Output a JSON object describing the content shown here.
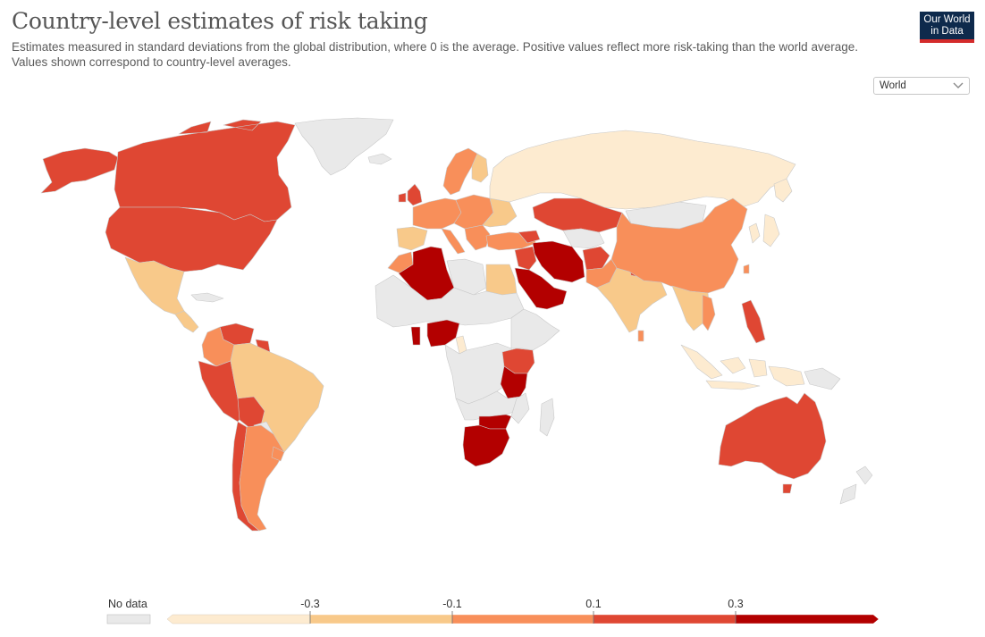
{
  "header": {
    "title": "Country-level estimates of risk taking",
    "subtitle": "Estimates measured in standard deviations from the global distribution, where 0 is the average. Positive values reflect more risk-taking than the world average. Values shown correspond to country-level averages.",
    "logo_line1": "Our World",
    "logo_line2": "in Data"
  },
  "controls": {
    "region_select_value": "World",
    "chevron_icon": "chevron-down-icon"
  },
  "legend": {
    "no_data_label": "No data",
    "tick_labels": [
      "-0.3",
      "-0.1",
      "0.1",
      "0.3"
    ],
    "bins": [
      {
        "from": null,
        "to": -0.3,
        "color": "#fdebd0"
      },
      {
        "from": -0.3,
        "to": -0.1,
        "color": "#f8c98a"
      },
      {
        "from": -0.1,
        "to": 0.1,
        "color": "#f88f5a"
      },
      {
        "from": 0.1,
        "to": 0.3,
        "color": "#df4733"
      },
      {
        "from": 0.3,
        "to": null,
        "color": "#b30000"
      }
    ],
    "no_data_color": "#e9e9e9"
  },
  "colors": {
    "no_data": "#e9e9e9",
    "bin1": "#fdebd0",
    "bin2": "#f8c98a",
    "bin3": "#f88f5a",
    "bin4": "#df4733",
    "bin5": "#b30000",
    "border": "#c9c9c9"
  }
}
